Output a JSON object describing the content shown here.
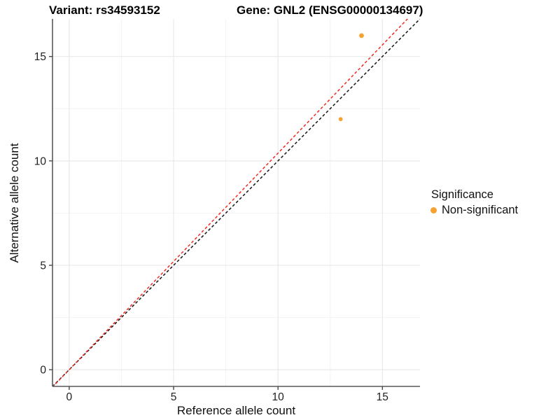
{
  "header": {
    "variant_title": "Variant: rs34593152",
    "gene_title": "Gene: GNL2 (ENSG00000134697)"
  },
  "chart_data": {
    "type": "scatter",
    "title": "Variant: rs34593152 | Gene: GNL2 (ENSG00000134697)",
    "xlabel": "Reference allele count",
    "ylabel": "Alternative allele count",
    "xlim": [
      -0.8,
      16.8
    ],
    "ylim": [
      -0.8,
      16.8
    ],
    "x_ticks": [
      0,
      5,
      10,
      15
    ],
    "y_ticks": [
      0,
      5,
      10,
      15
    ],
    "x_minor_ticks": [
      2.5,
      7.5,
      12.5
    ],
    "y_minor_ticks": [
      2.5,
      7.5,
      12.5
    ],
    "grid": true,
    "legend_position": "right",
    "series": [
      {
        "name": "Non-significant",
        "color": "#F9A032",
        "points": [
          {
            "x": 13,
            "y": 12,
            "r": 2.9
          },
          {
            "x": 14,
            "y": 16,
            "r": 3.4
          }
        ]
      }
    ],
    "reference_lines": [
      {
        "name": "identity-line",
        "slope": 1.0,
        "intercept": 0,
        "color": "#141414",
        "dash": "4,3"
      },
      {
        "name": "expected-ratio-line",
        "slope": 1.037,
        "intercept": 0,
        "color": "#EF2B23",
        "dash": "4,3"
      }
    ],
    "legend": {
      "title": "Significance",
      "items": [
        {
          "label": "Non-significant",
          "color": "#F9A032",
          "shape": "circle"
        }
      ]
    },
    "style": {
      "background": "#FFFFFF",
      "grid_major": "#E9E9E9",
      "grid_minor": "#F3F3F3",
      "axis_line": "#595959",
      "tick_mark": "#4A4A4A",
      "tick_label_color": "#1F1F1F"
    }
  }
}
